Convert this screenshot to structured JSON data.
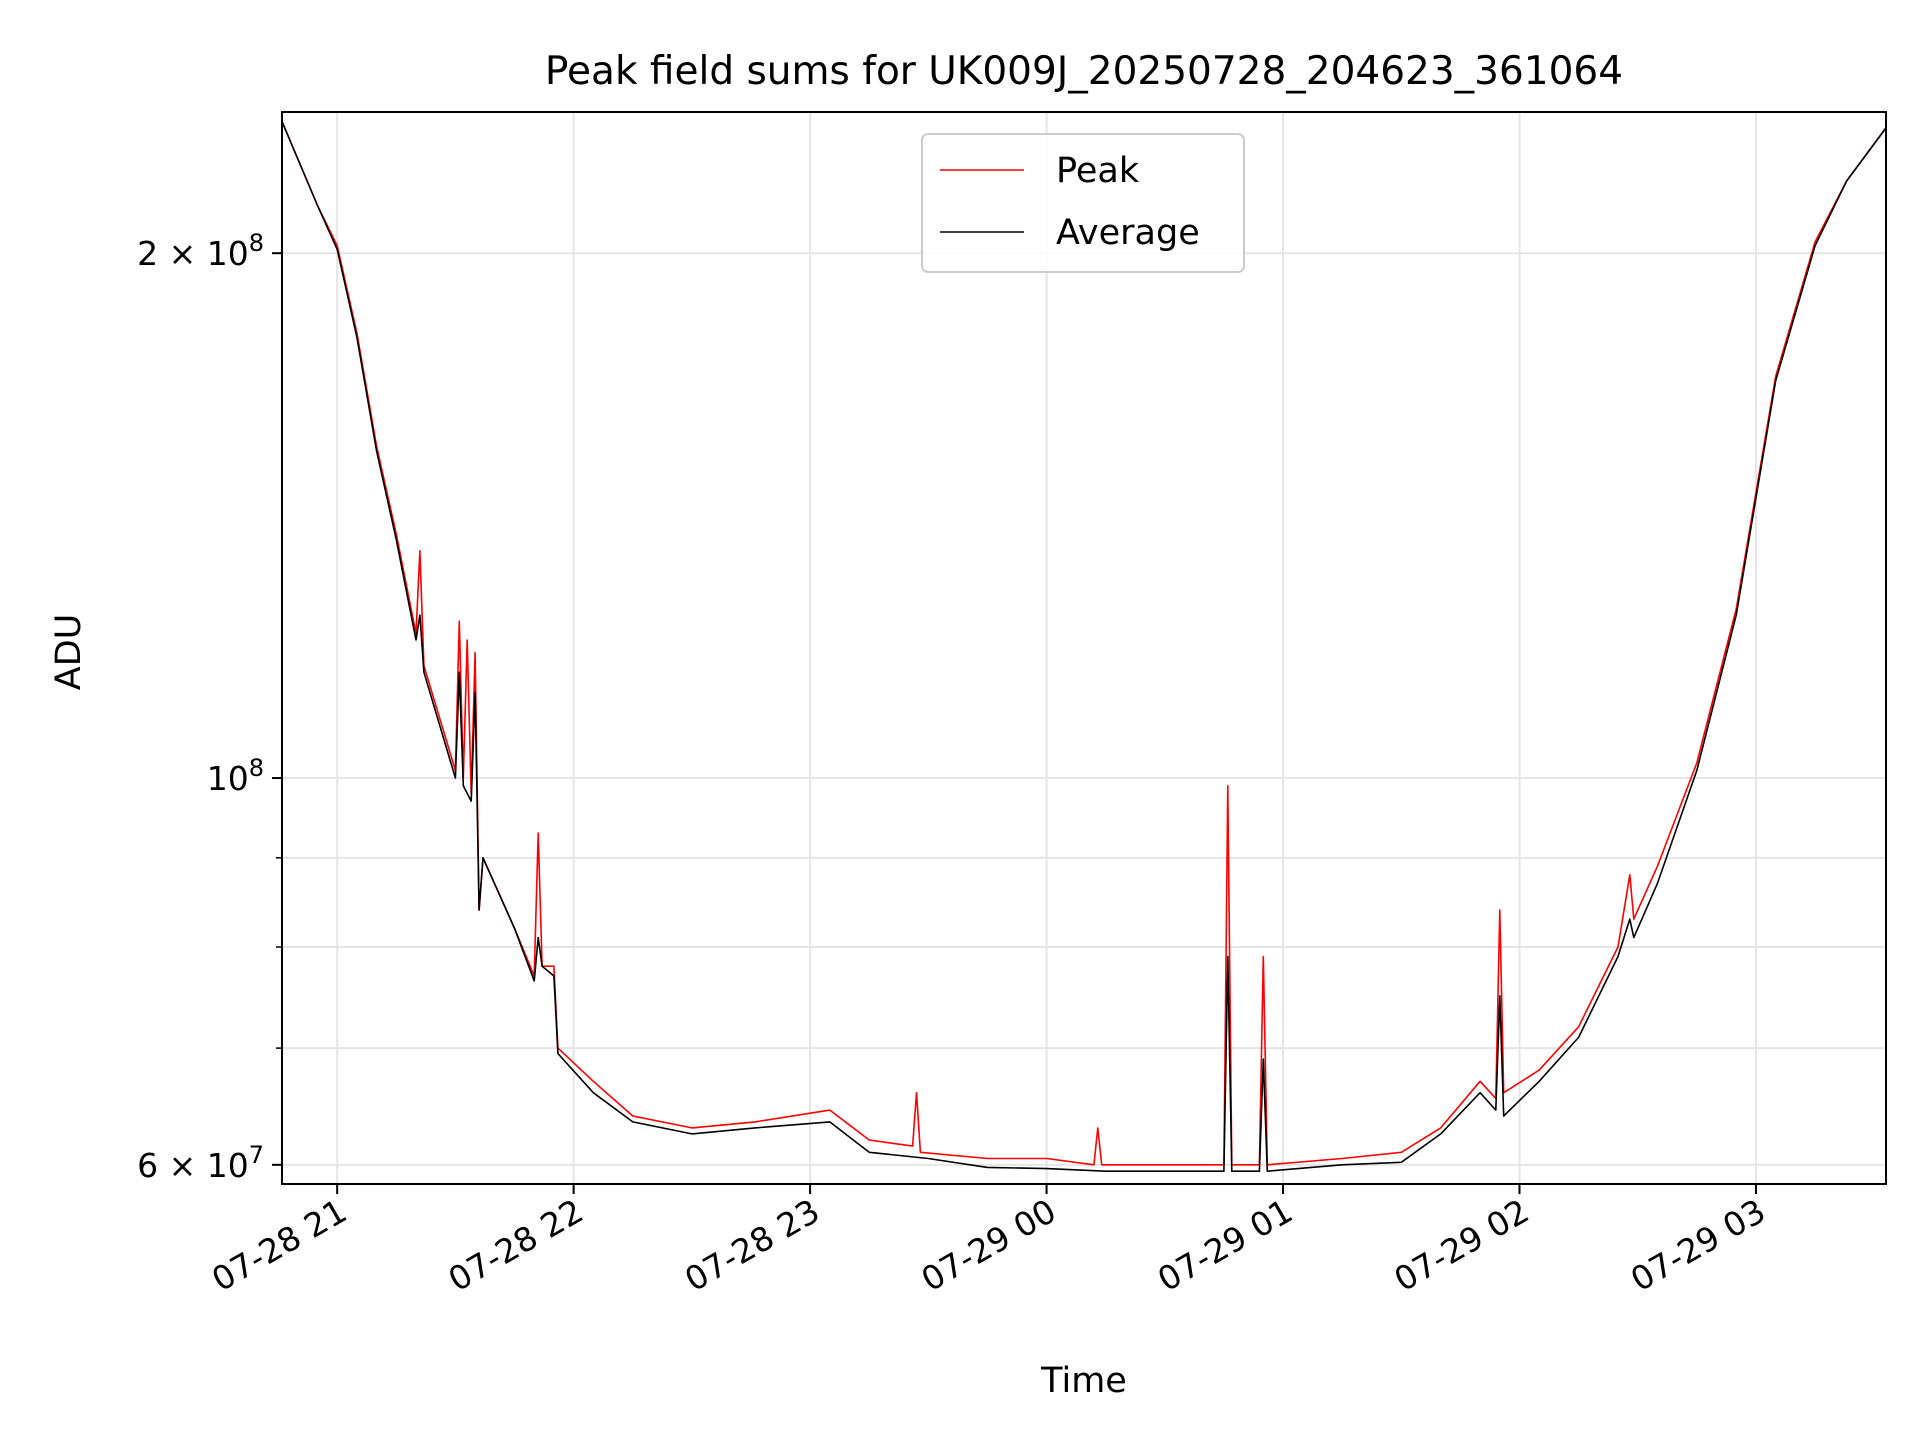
{
  "chart_data": {
    "type": "line",
    "title": "Peak field sums for UK009J_20250728_204623_361064",
    "xlabel": "Time",
    "ylabel": "ADU",
    "y_scale": "log",
    "xlim": [
      "2025-07-28 20:46",
      "2025-07-29 03:33"
    ],
    "ylim": [
      58500000,
      241000000
    ],
    "x_ticks": [
      {
        "value": "2025-07-28 21:00",
        "label": "07-28 21"
      },
      {
        "value": "2025-07-28 22:00",
        "label": "07-28 22"
      },
      {
        "value": "2025-07-28 23:00",
        "label": "07-28 23"
      },
      {
        "value": "2025-07-29 00:00",
        "label": "07-29 00"
      },
      {
        "value": "2025-07-29 01:00",
        "label": "07-29 01"
      },
      {
        "value": "2025-07-29 02:00",
        "label": "07-29 02"
      },
      {
        "value": "2025-07-29 03:00",
        "label": "07-29 03"
      }
    ],
    "y_major_ticks": [
      {
        "value": 60000000,
        "mantissa": "6",
        "label_times": "×",
        "base": "10",
        "exp": "7"
      },
      {
        "value": 100000000,
        "mantissa": "",
        "label_times": "",
        "base": "10",
        "exp": "8"
      },
      {
        "value": 200000000,
        "mantissa": "2",
        "label_times": "×",
        "base": "10",
        "exp": "8"
      }
    ],
    "y_minor_gridlines": [
      70000000,
      80000000,
      90000000
    ],
    "grid": true,
    "legend_position": "top-center",
    "series": [
      {
        "name": "Peak",
        "color": "#ff0000",
        "points": [
          [
            "2025-07-28 20:46",
            238000000
          ],
          [
            "2025-07-28 20:55",
            213000000
          ],
          [
            "2025-07-28 21:00",
            202000000
          ],
          [
            "2025-07-28 21:05",
            180000000
          ],
          [
            "2025-07-28 21:10",
            155000000
          ],
          [
            "2025-07-28 21:15",
            138000000
          ],
          [
            "2025-07-28 21:20",
            121000000
          ],
          [
            "2025-07-28 21:21",
            135000000
          ],
          [
            "2025-07-28 21:22",
            116000000
          ],
          [
            "2025-07-28 21:30",
            101000000
          ],
          [
            "2025-07-28 21:31",
            123000000
          ],
          [
            "2025-07-28 21:32",
            100000000
          ],
          [
            "2025-07-28 21:33",
            120000000
          ],
          [
            "2025-07-28 21:34",
            98000000
          ],
          [
            "2025-07-28 21:35",
            118000000
          ],
          [
            "2025-07-28 21:36",
            84000000
          ],
          [
            "2025-07-28 21:37",
            90000000
          ],
          [
            "2025-07-28 21:45",
            82000000
          ],
          [
            "2025-07-28 21:50",
            77000000
          ],
          [
            "2025-07-28 21:51",
            93000000
          ],
          [
            "2025-07-28 21:52",
            78000000
          ],
          [
            "2025-07-28 21:55",
            78000000
          ],
          [
            "2025-07-28 21:56",
            70000000
          ],
          [
            "2025-07-28 22:05",
            67000000
          ],
          [
            "2025-07-28 22:15",
            64000000
          ],
          [
            "2025-07-28 22:30",
            63000000
          ],
          [
            "2025-07-28 22:46",
            63500000
          ],
          [
            "2025-07-28 23:05",
            64500000
          ],
          [
            "2025-07-28 23:15",
            62000000
          ],
          [
            "2025-07-28 23:26",
            61500000
          ],
          [
            "2025-07-28 23:27",
            66000000
          ],
          [
            "2025-07-28 23:28",
            61000000
          ],
          [
            "2025-07-28 23:45",
            60500000
          ],
          [
            "2025-07-29 00:00",
            60500000
          ],
          [
            "2025-07-29 00:12",
            60000000
          ],
          [
            "2025-07-29 00:13",
            63000000
          ],
          [
            "2025-07-29 00:14",
            60000000
          ],
          [
            "2025-07-29 00:30",
            60000000
          ],
          [
            "2025-07-29 00:45",
            60000000
          ],
          [
            "2025-07-29 00:46",
            99000000
          ],
          [
            "2025-07-29 00:47",
            60000000
          ],
          [
            "2025-07-29 00:54",
            60000000
          ],
          [
            "2025-07-29 00:55",
            79000000
          ],
          [
            "2025-07-29 00:56",
            60000000
          ],
          [
            "2025-07-29 01:15",
            60500000
          ],
          [
            "2025-07-29 01:30",
            61000000
          ],
          [
            "2025-07-29 01:40",
            63000000
          ],
          [
            "2025-07-29 01:50",
            67000000
          ],
          [
            "2025-07-29 01:54",
            65500000
          ],
          [
            "2025-07-29 01:55",
            84000000
          ],
          [
            "2025-07-29 01:56",
            66000000
          ],
          [
            "2025-07-29 02:05",
            68000000
          ],
          [
            "2025-07-29 02:15",
            72000000
          ],
          [
            "2025-07-29 02:25",
            80000000
          ],
          [
            "2025-07-29 02:28",
            88000000
          ],
          [
            "2025-07-29 02:29",
            83000000
          ],
          [
            "2025-07-29 02:35",
            89000000
          ],
          [
            "2025-07-29 02:45",
            102000000
          ],
          [
            "2025-07-29 02:55",
            125000000
          ],
          [
            "2025-07-29 03:05",
            170000000
          ],
          [
            "2025-07-29 03:15",
            203000000
          ],
          [
            "2025-07-29 03:23",
            220000000
          ],
          [
            "2025-07-29 03:33",
            236000000
          ]
        ]
      },
      {
        "name": "Average",
        "color": "#000000",
        "points": [
          [
            "2025-07-28 20:46",
            238000000
          ],
          [
            "2025-07-28 20:55",
            213000000
          ],
          [
            "2025-07-28 21:00",
            201000000
          ],
          [
            "2025-07-28 21:05",
            179000000
          ],
          [
            "2025-07-28 21:10",
            154000000
          ],
          [
            "2025-07-28 21:15",
            137000000
          ],
          [
            "2025-07-28 21:20",
            120000000
          ],
          [
            "2025-07-28 21:21",
            124000000
          ],
          [
            "2025-07-28 21:22",
            115000000
          ],
          [
            "2025-07-28 21:30",
            100000000
          ],
          [
            "2025-07-28 21:31",
            115000000
          ],
          [
            "2025-07-28 21:32",
            99000000
          ],
          [
            "2025-07-28 21:34",
            97000000
          ],
          [
            "2025-07-28 21:35",
            112000000
          ],
          [
            "2025-07-28 21:36",
            84000000
          ],
          [
            "2025-07-28 21:37",
            90000000
          ],
          [
            "2025-07-28 21:45",
            82000000
          ],
          [
            "2025-07-28 21:50",
            76500000
          ],
          [
            "2025-07-28 21:51",
            81000000
          ],
          [
            "2025-07-28 21:52",
            78000000
          ],
          [
            "2025-07-28 21:55",
            77000000
          ],
          [
            "2025-07-28 21:56",
            69500000
          ],
          [
            "2025-07-28 22:05",
            66000000
          ],
          [
            "2025-07-28 22:15",
            63500000
          ],
          [
            "2025-07-28 22:30",
            62500000
          ],
          [
            "2025-07-28 22:46",
            63000000
          ],
          [
            "2025-07-28 23:05",
            63500000
          ],
          [
            "2025-07-28 23:15",
            61000000
          ],
          [
            "2025-07-28 23:30",
            60500000
          ],
          [
            "2025-07-28 23:45",
            59800000
          ],
          [
            "2025-07-29 00:00",
            59700000
          ],
          [
            "2025-07-29 00:15",
            59500000
          ],
          [
            "2025-07-29 00:30",
            59500000
          ],
          [
            "2025-07-29 00:45",
            59500000
          ],
          [
            "2025-07-29 00:46",
            79000000
          ],
          [
            "2025-07-29 00:47",
            59500000
          ],
          [
            "2025-07-29 00:54",
            59500000
          ],
          [
            "2025-07-29 00:55",
            69000000
          ],
          [
            "2025-07-29 00:56",
            59500000
          ],
          [
            "2025-07-29 01:15",
            60000000
          ],
          [
            "2025-07-29 01:30",
            60200000
          ],
          [
            "2025-07-29 01:40",
            62500000
          ],
          [
            "2025-07-29 01:50",
            66000000
          ],
          [
            "2025-07-29 01:54",
            64500000
          ],
          [
            "2025-07-29 01:55",
            75000000
          ],
          [
            "2025-07-29 01:56",
            64000000
          ],
          [
            "2025-07-29 02:05",
            67000000
          ],
          [
            "2025-07-29 02:15",
            71000000
          ],
          [
            "2025-07-29 02:25",
            79000000
          ],
          [
            "2025-07-29 02:28",
            83000000
          ],
          [
            "2025-07-29 02:29",
            81000000
          ],
          [
            "2025-07-29 02:35",
            87000000
          ],
          [
            "2025-07-29 02:45",
            101000000
          ],
          [
            "2025-07-29 02:55",
            124000000
          ],
          [
            "2025-07-29 03:05",
            169000000
          ],
          [
            "2025-07-29 03:15",
            202000000
          ],
          [
            "2025-07-29 03:23",
            220000000
          ],
          [
            "2025-07-29 03:33",
            236000000
          ]
        ]
      }
    ]
  }
}
